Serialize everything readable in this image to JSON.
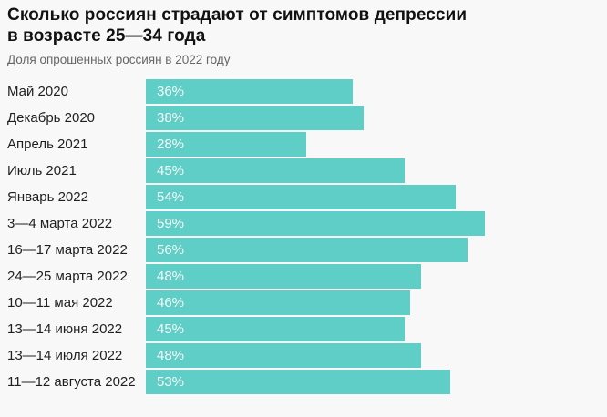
{
  "title_lines": [
    "Сколько россиян страдают от симптомов депрессии",
    "в возрасте 25—34 года"
  ],
  "subtitle": "Доля опрошенных россиян в 2022 году",
  "colors": {
    "background": "#f8f8f8",
    "bar": "#5ecec7",
    "title_text": "#111111",
    "subtitle_text": "#666666",
    "category_text": "#1f1f1f",
    "value_text": "#ffffff"
  },
  "chart_data": {
    "type": "bar",
    "orientation": "horizontal",
    "title": "Сколько россиян страдают от симптомов депрессии в возрасте 25—34 года",
    "subtitle": "Доля опрошенных россиян в 2022 году",
    "unit": "%",
    "axis": "none",
    "grid": false,
    "legend": "none",
    "value_labels_inside_bars": true,
    "categories": [
      "Май 2020",
      "Декабрь 2020",
      "Апрель 2021",
      "Июль 2021",
      "Январь 2022",
      "3—4 марта 2022",
      "16—17 марта 2022",
      "24—25 марта 2022",
      "10—11 мая 2022",
      "13—14 июня 2022",
      "13—14 июля 2022",
      "11—12 августа 2022"
    ],
    "values": [
      36,
      38,
      28,
      45,
      54,
      59,
      56,
      48,
      46,
      45,
      48,
      53
    ],
    "value_labels": [
      "36%",
      "38%",
      "28%",
      "45%",
      "54%",
      "59%",
      "56%",
      "48%",
      "46%",
      "45%",
      "48%",
      "53%"
    ]
  }
}
